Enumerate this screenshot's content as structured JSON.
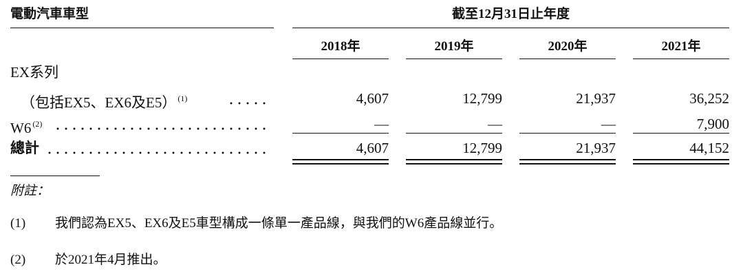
{
  "table": {
    "header": {
      "label": "電動汽車車型",
      "group": "截至12月31日止年度"
    },
    "columns": [
      "2018年",
      "2019年",
      "2020年",
      "2021年"
    ],
    "rows": [
      {
        "label": "EX系列",
        "sublabel": "（包括EX5、EX6及E5）",
        "note": "(1)",
        "values": [
          "4,607",
          "12,799",
          "21,937",
          "36,252"
        ]
      },
      {
        "label": "W6",
        "note": "(2)",
        "values": [
          "—",
          "—",
          "—",
          "7,900"
        ]
      }
    ],
    "total": {
      "label": "總計",
      "values": [
        "4,607",
        "12,799",
        "21,937",
        "44,152"
      ]
    }
  },
  "notes": {
    "title": "附註：",
    "items": [
      {
        "marker": "(1)",
        "text": "我們認為EX5、EX6及E5車型構成一條單一產品線，與我們的W6產品線並行。"
      },
      {
        "marker": "(2)",
        "text": "於2021年4月推出。"
      }
    ]
  }
}
